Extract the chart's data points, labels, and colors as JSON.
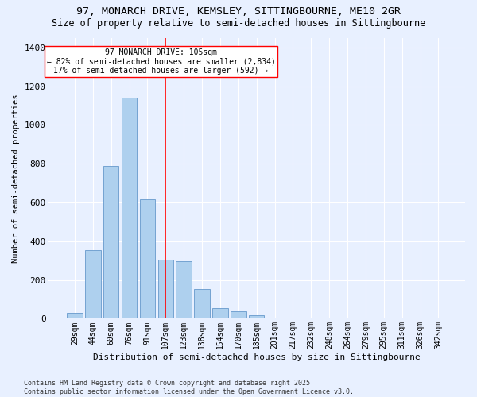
{
  "title1": "97, MONARCH DRIVE, KEMSLEY, SITTINGBOURNE, ME10 2GR",
  "title2": "Size of property relative to semi-detached houses in Sittingbourne",
  "xlabel": "Distribution of semi-detached houses by size in Sittingbourne",
  "ylabel": "Number of semi-detached properties",
  "footer1": "Contains HM Land Registry data © Crown copyright and database right 2025.",
  "footer2": "Contains public sector information licensed under the Open Government Licence v3.0.",
  "annotation_line1": "97 MONARCH DRIVE: 105sqm",
  "annotation_line2": "← 82% of semi-detached houses are smaller (2,834)",
  "annotation_line3": "17% of semi-detached houses are larger (592) →",
  "bar_color": "#aed0ee",
  "bar_edge_color": "#6699cc",
  "categories": [
    "29sqm",
    "44sqm",
    "60sqm",
    "76sqm",
    "91sqm",
    "107sqm",
    "123sqm",
    "138sqm",
    "154sqm",
    "170sqm",
    "185sqm",
    "201sqm",
    "217sqm",
    "232sqm",
    "248sqm",
    "264sqm",
    "279sqm",
    "295sqm",
    "311sqm",
    "326sqm",
    "342sqm"
  ],
  "values": [
    30,
    355,
    790,
    1140,
    615,
    305,
    295,
    155,
    55,
    40,
    20,
    0,
    0,
    0,
    0,
    0,
    0,
    0,
    0,
    0,
    0
  ],
  "red_line_index": 5,
  "ylim": [
    0,
    1450
  ],
  "yticks": [
    0,
    200,
    400,
    600,
    800,
    1000,
    1200,
    1400
  ],
  "bg_color": "#e8f0ff",
  "grid_color": "#ffffff",
  "red_line_color": "red",
  "annotation_box_facecolor": "white",
  "annotation_box_edgecolor": "red"
}
